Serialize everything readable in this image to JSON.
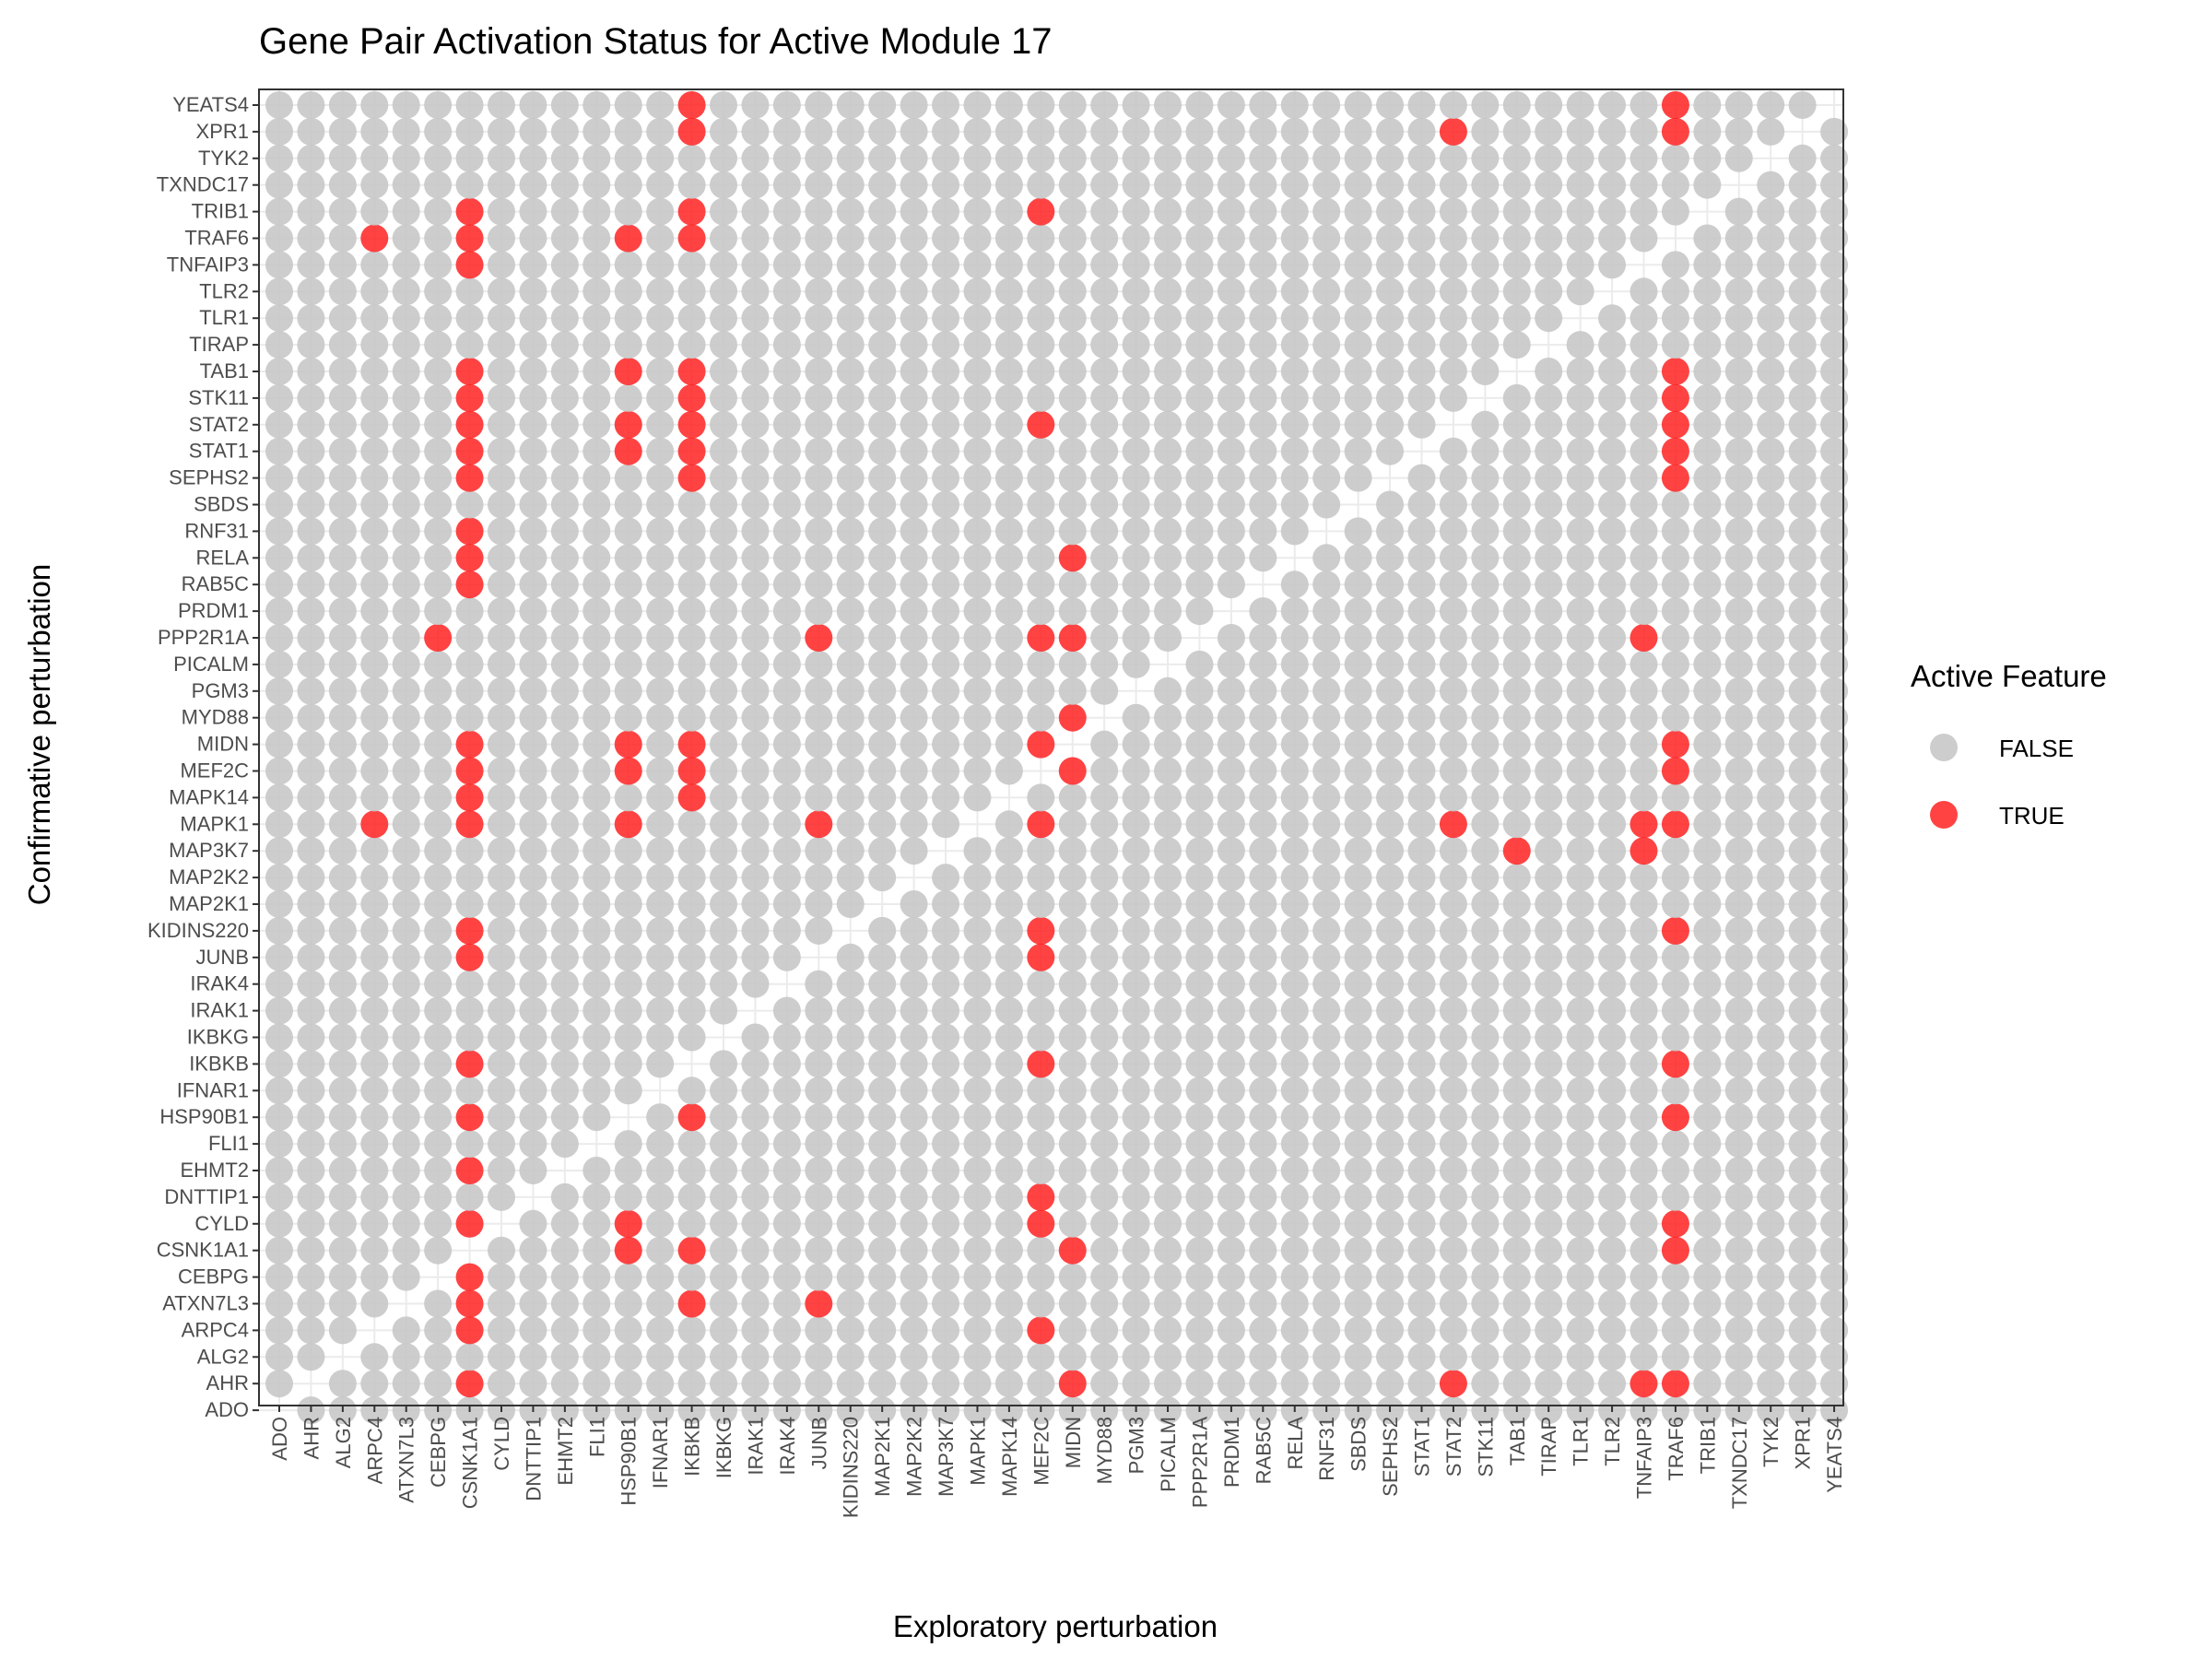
{
  "chart_data": {
    "type": "scatter",
    "title": "Gene Pair Activation Status for Active Module 17",
    "xlabel": "Exploratory perturbation",
    "ylabel": "Confirmative perturbation",
    "categories": [
      "ADO",
      "AHR",
      "ALG2",
      "ARPC4",
      "ATXN7L3",
      "CEBPG",
      "CSNK1A1",
      "CYLD",
      "DNTTIP1",
      "EHMT2",
      "FLI1",
      "HSP90B1",
      "IFNAR1",
      "IKBKB",
      "IKBKG",
      "IRAK1",
      "IRAK4",
      "JUNB",
      "KIDINS220",
      "MAP2K1",
      "MAP2K2",
      "MAP3K7",
      "MAPK1",
      "MAPK14",
      "MEF2C",
      "MIDN",
      "MYD88",
      "PGM3",
      "PICALM",
      "PPP2R1A",
      "PRDM1",
      "RAB5C",
      "RELA",
      "RNF31",
      "SBDS",
      "SEPHS2",
      "STAT1",
      "STAT2",
      "STK11",
      "TAB1",
      "TIRAP",
      "TLR1",
      "TLR2",
      "TNFAIP3",
      "TRAF6",
      "TRIB1",
      "TXNDC17",
      "TYK2",
      "XPR1",
      "YEATS4"
    ],
    "legend": {
      "title": "Active Feature",
      "position": "right",
      "entries": [
        {
          "label": "FALSE",
          "color": "#c8c8c8"
        },
        {
          "label": "TRUE",
          "color": "#ff2222"
        }
      ]
    },
    "diagonal_omitted": true,
    "true_pairs": [
      {
        "x": "IKBKB",
        "y": "YEATS4"
      },
      {
        "x": "TRAF6",
        "y": "YEATS4"
      },
      {
        "x": "IKBKB",
        "y": "XPR1"
      },
      {
        "x": "STAT2",
        "y": "XPR1"
      },
      {
        "x": "TRAF6",
        "y": "XPR1"
      },
      {
        "x": "CSNK1A1",
        "y": "TRIB1"
      },
      {
        "x": "IKBKB",
        "y": "TRIB1"
      },
      {
        "x": "MEF2C",
        "y": "TRIB1"
      },
      {
        "x": "ARPC4",
        "y": "TRAF6"
      },
      {
        "x": "CSNK1A1",
        "y": "TRAF6"
      },
      {
        "x": "HSP90B1",
        "y": "TRAF6"
      },
      {
        "x": "IKBKB",
        "y": "TRAF6"
      },
      {
        "x": "CSNK1A1",
        "y": "TNFAIP3"
      },
      {
        "x": "CSNK1A1",
        "y": "TAB1"
      },
      {
        "x": "HSP90B1",
        "y": "TAB1"
      },
      {
        "x": "IKBKB",
        "y": "TAB1"
      },
      {
        "x": "TRAF6",
        "y": "TAB1"
      },
      {
        "x": "CSNK1A1",
        "y": "STK11"
      },
      {
        "x": "IKBKB",
        "y": "STK11"
      },
      {
        "x": "TRAF6",
        "y": "STK11"
      },
      {
        "x": "CSNK1A1",
        "y": "STAT2"
      },
      {
        "x": "HSP90B1",
        "y": "STAT2"
      },
      {
        "x": "IKBKB",
        "y": "STAT2"
      },
      {
        "x": "MEF2C",
        "y": "STAT2"
      },
      {
        "x": "TRAF6",
        "y": "STAT2"
      },
      {
        "x": "CSNK1A1",
        "y": "STAT1"
      },
      {
        "x": "HSP90B1",
        "y": "STAT1"
      },
      {
        "x": "IKBKB",
        "y": "STAT1"
      },
      {
        "x": "TRAF6",
        "y": "STAT1"
      },
      {
        "x": "CSNK1A1",
        "y": "SEPHS2"
      },
      {
        "x": "IKBKB",
        "y": "SEPHS2"
      },
      {
        "x": "TRAF6",
        "y": "SEPHS2"
      },
      {
        "x": "CSNK1A1",
        "y": "RNF31"
      },
      {
        "x": "CSNK1A1",
        "y": "RELA"
      },
      {
        "x": "MIDN",
        "y": "RELA"
      },
      {
        "x": "CSNK1A1",
        "y": "RAB5C"
      },
      {
        "x": "CEBPG",
        "y": "PPP2R1A"
      },
      {
        "x": "JUNB",
        "y": "PPP2R1A"
      },
      {
        "x": "MEF2C",
        "y": "PPP2R1A"
      },
      {
        "x": "MIDN",
        "y": "PPP2R1A"
      },
      {
        "x": "TNFAIP3",
        "y": "PPP2R1A"
      },
      {
        "x": "MIDN",
        "y": "MYD88"
      },
      {
        "x": "CSNK1A1",
        "y": "MIDN"
      },
      {
        "x": "HSP90B1",
        "y": "MIDN"
      },
      {
        "x": "IKBKB",
        "y": "MIDN"
      },
      {
        "x": "MEF2C",
        "y": "MIDN"
      },
      {
        "x": "TRAF6",
        "y": "MIDN"
      },
      {
        "x": "CSNK1A1",
        "y": "MEF2C"
      },
      {
        "x": "HSP90B1",
        "y": "MEF2C"
      },
      {
        "x": "IKBKB",
        "y": "MEF2C"
      },
      {
        "x": "MIDN",
        "y": "MEF2C"
      },
      {
        "x": "TRAF6",
        "y": "MEF2C"
      },
      {
        "x": "CSNK1A1",
        "y": "MAPK14"
      },
      {
        "x": "IKBKB",
        "y": "MAPK14"
      },
      {
        "x": "ARPC4",
        "y": "MAPK1"
      },
      {
        "x": "CSNK1A1",
        "y": "MAPK1"
      },
      {
        "x": "HSP90B1",
        "y": "MAPK1"
      },
      {
        "x": "JUNB",
        "y": "MAPK1"
      },
      {
        "x": "MEF2C",
        "y": "MAPK1"
      },
      {
        "x": "STAT2",
        "y": "MAPK1"
      },
      {
        "x": "TNFAIP3",
        "y": "MAPK1"
      },
      {
        "x": "TRAF6",
        "y": "MAPK1"
      },
      {
        "x": "TAB1",
        "y": "MAP3K7"
      },
      {
        "x": "TNFAIP3",
        "y": "MAP3K7"
      },
      {
        "x": "CSNK1A1",
        "y": "KIDINS220"
      },
      {
        "x": "MEF2C",
        "y": "KIDINS220"
      },
      {
        "x": "TRAF6",
        "y": "KIDINS220"
      },
      {
        "x": "CSNK1A1",
        "y": "JUNB"
      },
      {
        "x": "MEF2C",
        "y": "JUNB"
      },
      {
        "x": "CSNK1A1",
        "y": "IKBKB"
      },
      {
        "x": "MEF2C",
        "y": "IKBKB"
      },
      {
        "x": "TRAF6",
        "y": "IKBKB"
      },
      {
        "x": "CSNK1A1",
        "y": "HSP90B1"
      },
      {
        "x": "IKBKB",
        "y": "HSP90B1"
      },
      {
        "x": "TRAF6",
        "y": "HSP90B1"
      },
      {
        "x": "CSNK1A1",
        "y": "EHMT2"
      },
      {
        "x": "MEF2C",
        "y": "DNTTIP1"
      },
      {
        "x": "CSNK1A1",
        "y": "CYLD"
      },
      {
        "x": "HSP90B1",
        "y": "CYLD"
      },
      {
        "x": "MEF2C",
        "y": "CYLD"
      },
      {
        "x": "TRAF6",
        "y": "CYLD"
      },
      {
        "x": "HSP90B1",
        "y": "CSNK1A1"
      },
      {
        "x": "IKBKB",
        "y": "CSNK1A1"
      },
      {
        "x": "MIDN",
        "y": "CSNK1A1"
      },
      {
        "x": "TRAF6",
        "y": "CSNK1A1"
      },
      {
        "x": "CSNK1A1",
        "y": "CEBPG"
      },
      {
        "x": "CSNK1A1",
        "y": "ATXN7L3"
      },
      {
        "x": "IKBKB",
        "y": "ATXN7L3"
      },
      {
        "x": "JUNB",
        "y": "ATXN7L3"
      },
      {
        "x": "CSNK1A1",
        "y": "ARPC4"
      },
      {
        "x": "MEF2C",
        "y": "ARPC4"
      },
      {
        "x": "CSNK1A1",
        "y": "AHR"
      },
      {
        "x": "MIDN",
        "y": "AHR"
      },
      {
        "x": "STAT2",
        "y": "AHR"
      },
      {
        "x": "TNFAIP3",
        "y": "AHR"
      },
      {
        "x": "TRAF6",
        "y": "AHR"
      }
    ]
  }
}
